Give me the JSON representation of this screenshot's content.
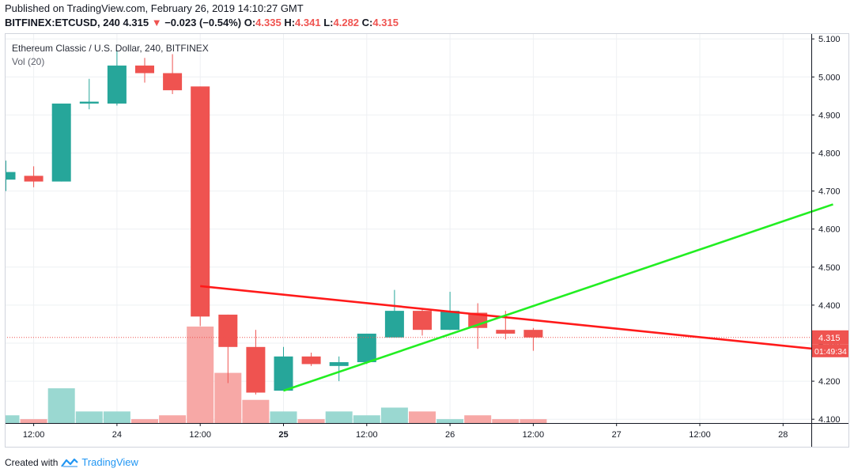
{
  "header": {
    "published": "Published on TradingView.com, February 26, 2019 14:10:27 GMT",
    "symbol": "BITFINEX:ETCUSD, 240",
    "last": "4.315",
    "arrow": "▼",
    "change": "−0.023 (−0.54%)",
    "open_label": "O:",
    "open": "4.335",
    "high_label": "H:",
    "high": "4.341",
    "low_label": "L:",
    "low": "4.282",
    "close_label": "C:",
    "close": "4.315"
  },
  "legend": {
    "title": "Ethereum Classic / U.S. Dollar, 240, BITFINEX",
    "volume": "Vol (20)"
  },
  "footer": {
    "created": "Created with",
    "brand": "TradingView"
  },
  "colors": {
    "up": "#26a69a",
    "down": "#ef5350",
    "up_vol": "#9ad8d1",
    "down_vol": "#f7a8a6",
    "resistance": "#ff1a1a",
    "support": "#22ee22"
  },
  "chart_data": {
    "type": "candlestick",
    "price_axis": {
      "ylim": [
        4.09,
        5.115
      ],
      "ticks": [
        "5.100",
        "5.000",
        "4.900",
        "4.800",
        "4.700",
        "4.600",
        "4.500",
        "4.400",
        "4.300",
        "4.200",
        "4.100"
      ]
    },
    "time_axis": {
      "labels": [
        "12:00",
        "24",
        "12:00",
        "25",
        "12:00",
        "26",
        "12:00",
        "27",
        "12:00",
        "28"
      ],
      "bar_index": [
        1,
        4,
        7,
        10,
        13,
        16,
        19,
        22,
        25,
        28
      ],
      "bold": [
        false,
        false,
        false,
        true,
        false,
        false,
        false,
        false,
        false,
        false
      ]
    },
    "candles": [
      {
        "o": 4.73,
        "h": 4.78,
        "l": 4.7,
        "c": 4.75
      },
      {
        "o": 4.74,
        "h": 4.765,
        "l": 4.71,
        "c": 4.725
      },
      {
        "o": 4.725,
        "h": 4.93,
        "l": 4.725,
        "c": 4.93
      },
      {
        "o": 4.93,
        "h": 4.995,
        "l": 4.915,
        "c": 4.935
      },
      {
        "o": 4.93,
        "h": 5.07,
        "l": 4.925,
        "c": 5.03
      },
      {
        "o": 5.03,
        "h": 5.05,
        "l": 4.985,
        "c": 5.01
      },
      {
        "o": 5.01,
        "h": 5.06,
        "l": 4.955,
        "c": 4.965
      },
      {
        "o": 4.975,
        "h": 4.975,
        "l": 4.345,
        "c": 4.37
      },
      {
        "o": 4.375,
        "h": 4.375,
        "l": 4.195,
        "c": 4.29
      },
      {
        "o": 4.29,
        "h": 4.335,
        "l": 4.165,
        "c": 4.17
      },
      {
        "o": 4.175,
        "h": 4.29,
        "l": 4.175,
        "c": 4.265
      },
      {
        "o": 4.265,
        "h": 4.275,
        "l": 4.24,
        "c": 4.245
      },
      {
        "o": 4.24,
        "h": 4.265,
        "l": 4.2,
        "c": 4.25
      },
      {
        "o": 4.25,
        "h": 4.325,
        "l": 4.245,
        "c": 4.325
      },
      {
        "o": 4.315,
        "h": 4.44,
        "l": 4.315,
        "c": 4.385
      },
      {
        "o": 4.385,
        "h": 4.39,
        "l": 4.32,
        "c": 4.335
      },
      {
        "o": 4.335,
        "h": 4.435,
        "l": 4.335,
        "c": 4.385
      },
      {
        "o": 4.38,
        "h": 4.405,
        "l": 4.285,
        "c": 4.34
      },
      {
        "o": 4.335,
        "h": 4.385,
        "l": 4.31,
        "c": 4.325
      },
      {
        "o": 4.335,
        "h": 4.34,
        "l": 4.28,
        "c": 4.315
      }
    ],
    "volume": [
      2,
      1,
      9,
      3,
      3,
      1,
      2,
      25,
      13,
      6,
      3,
      1,
      3,
      2,
      4,
      3,
      1,
      2,
      1,
      1
    ],
    "volume_max": 25,
    "last_price": {
      "value": 4.315,
      "label": "4.315",
      "countdown": "01:49:34"
    },
    "trendlines": [
      {
        "name": "resistance",
        "color": "#ff1a1a",
        "from": [
          7,
          4.45
        ],
        "to": [
          29.8,
          4.28
        ]
      },
      {
        "name": "support",
        "color": "#22ee22",
        "from": [
          10,
          4.175
        ],
        "to": [
          29.8,
          4.665
        ]
      }
    ]
  }
}
